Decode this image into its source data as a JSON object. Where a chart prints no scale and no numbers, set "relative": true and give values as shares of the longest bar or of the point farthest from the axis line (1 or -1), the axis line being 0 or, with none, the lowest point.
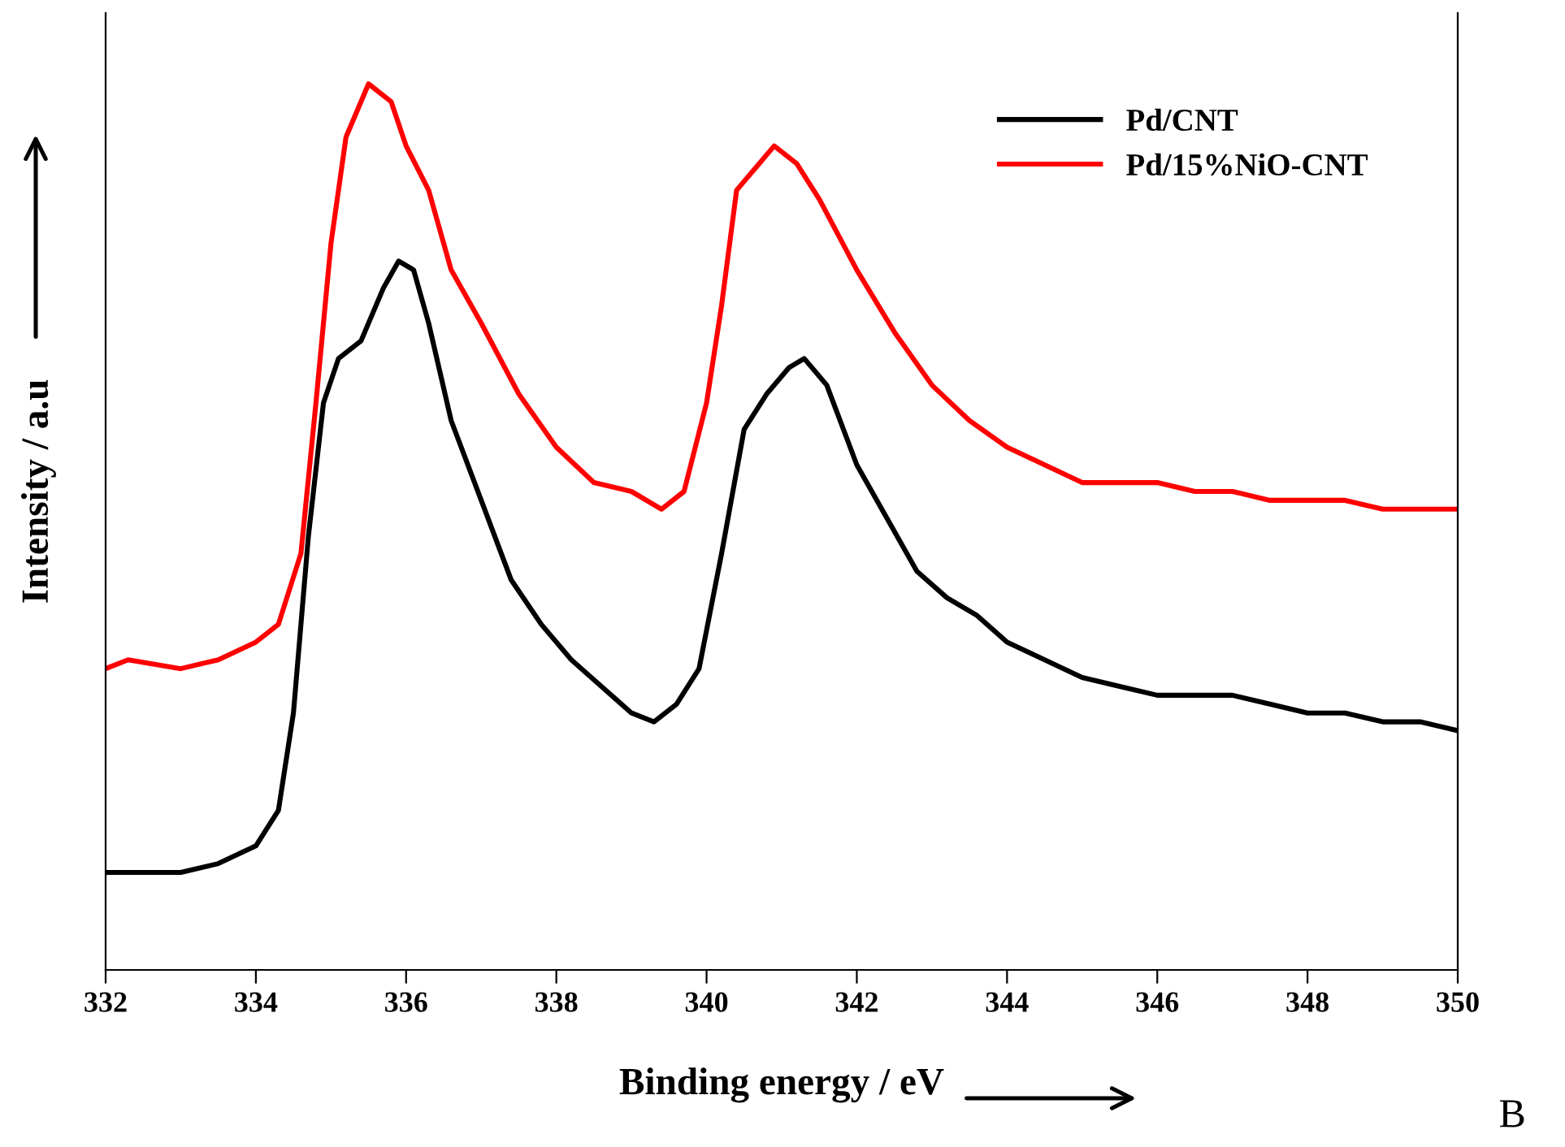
{
  "chart_data": {
    "type": "line",
    "relative": true,
    "xlabel": "Binding energy / eV",
    "ylabel": "Intensity / a.u",
    "xlim": [
      332,
      350
    ],
    "xticks": [
      332,
      334,
      336,
      338,
      340,
      342,
      344,
      346,
      348,
      350
    ],
    "tick_labels": "x",
    "grid": false,
    "legend": "top right",
    "marker": "none",
    "line_style": "solid",
    "annotations": [
      "B"
    ],
    "series": [
      {
        "name": "Pd/CNT",
        "color": "#000000",
        "x": [
          332,
          333,
          333.5,
          334,
          334.3,
          334.5,
          334.7,
          334.9,
          335.1,
          335.4,
          335.7,
          335.9,
          336.1,
          336.3,
          336.6,
          337,
          337.4,
          337.8,
          338.2,
          338.6,
          339,
          339.3,
          339.6,
          339.9,
          340.2,
          340.5,
          340.8,
          341.1,
          341.3,
          341.6,
          342,
          342.4,
          342.8,
          343.2,
          343.6,
          344,
          344.5,
          345,
          345.5,
          346,
          346.5,
          347,
          347.5,
          348,
          348.5,
          349,
          349.5,
          350
        ],
        "values": [
          0.11,
          0.11,
          0.12,
          0.14,
          0.18,
          0.29,
          0.49,
          0.64,
          0.69,
          0.71,
          0.77,
          0.8,
          0.79,
          0.73,
          0.62,
          0.53,
          0.44,
          0.39,
          0.35,
          0.32,
          0.29,
          0.28,
          0.3,
          0.34,
          0.47,
          0.61,
          0.65,
          0.68,
          0.69,
          0.66,
          0.57,
          0.51,
          0.45,
          0.42,
          0.4,
          0.37,
          0.35,
          0.33,
          0.32,
          0.31,
          0.31,
          0.31,
          0.3,
          0.29,
          0.29,
          0.28,
          0.28,
          0.27
        ]
      },
      {
        "name": "Pd/15%NiO-CNT",
        "color": "#ff0000",
        "x": [
          332,
          332.3,
          333,
          333.5,
          334,
          334.3,
          334.6,
          334.8,
          335,
          335.2,
          335.5,
          335.8,
          336,
          336.3,
          336.6,
          337,
          337.5,
          338,
          338.5,
          339,
          339.4,
          339.7,
          340,
          340.2,
          340.4,
          340.7,
          340.9,
          341.2,
          341.5,
          342,
          342.5,
          343,
          343.5,
          344,
          344.5,
          345,
          345.5,
          346,
          346.5,
          347,
          347.5,
          348,
          348.5,
          349,
          349.5,
          350
        ],
        "values": [
          0.34,
          0.35,
          0.34,
          0.35,
          0.37,
          0.39,
          0.47,
          0.64,
          0.82,
          0.94,
          1,
          0.98,
          0.93,
          0.88,
          0.79,
          0.73,
          0.65,
          0.59,
          0.55,
          0.54,
          0.52,
          0.54,
          0.64,
          0.75,
          0.88,
          0.91,
          0.93,
          0.91,
          0.87,
          0.79,
          0.72,
          0.66,
          0.62,
          0.59,
          0.57,
          0.55,
          0.55,
          0.55,
          0.54,
          0.54,
          0.53,
          0.53,
          0.53,
          0.52,
          0.52,
          0.52
        ]
      }
    ]
  }
}
